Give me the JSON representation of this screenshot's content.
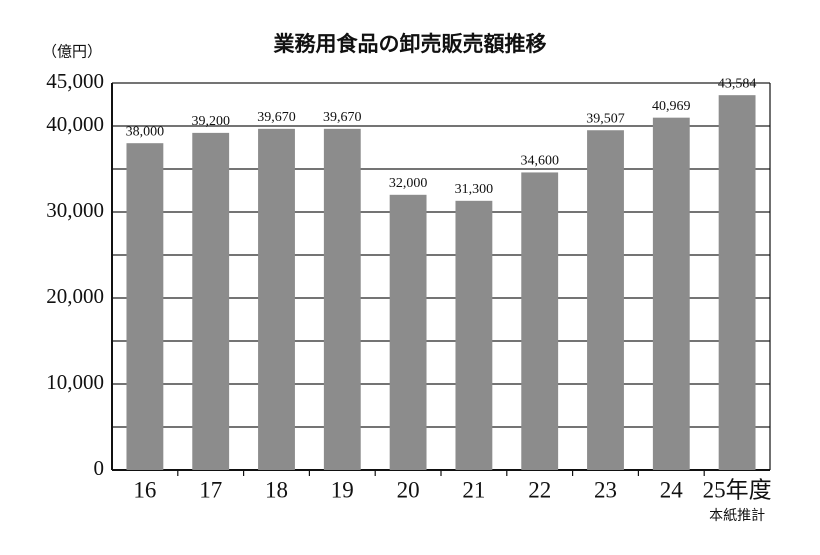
{
  "chart_data": {
    "type": "bar",
    "title": "業務用食品の卸売販売額推移",
    "unit_label": "（億円）",
    "categories": [
      "16",
      "17",
      "18",
      "19",
      "20",
      "21",
      "22",
      "23",
      "24",
      "25年度"
    ],
    "category_note": "本紙推計",
    "values": [
      38000,
      39200,
      39670,
      39670,
      32000,
      31300,
      34600,
      39507,
      40969,
      43584
    ],
    "value_labels": [
      "38,000",
      "39,200",
      "39,670",
      "39,670",
      "32,000",
      "31,300",
      "34,600",
      "39,507",
      "40,969",
      "43,584"
    ],
    "color": "#8c8c8c",
    "ylim": [
      0,
      45000
    ],
    "yticks": [
      0,
      {
        "value": 10000,
        "label": "10,000"
      },
      {
        "value": 20000,
        "label": "20,000"
      },
      {
        "value": 30000,
        "label": "30,000"
      },
      {
        "value": 40000,
        "label": "40,000"
      },
      {
        "value": 45000,
        "label": "45,000"
      }
    ],
    "minor_gridlines": [
      5000,
      15000,
      25000,
      35000
    ],
    "grid": true
  }
}
